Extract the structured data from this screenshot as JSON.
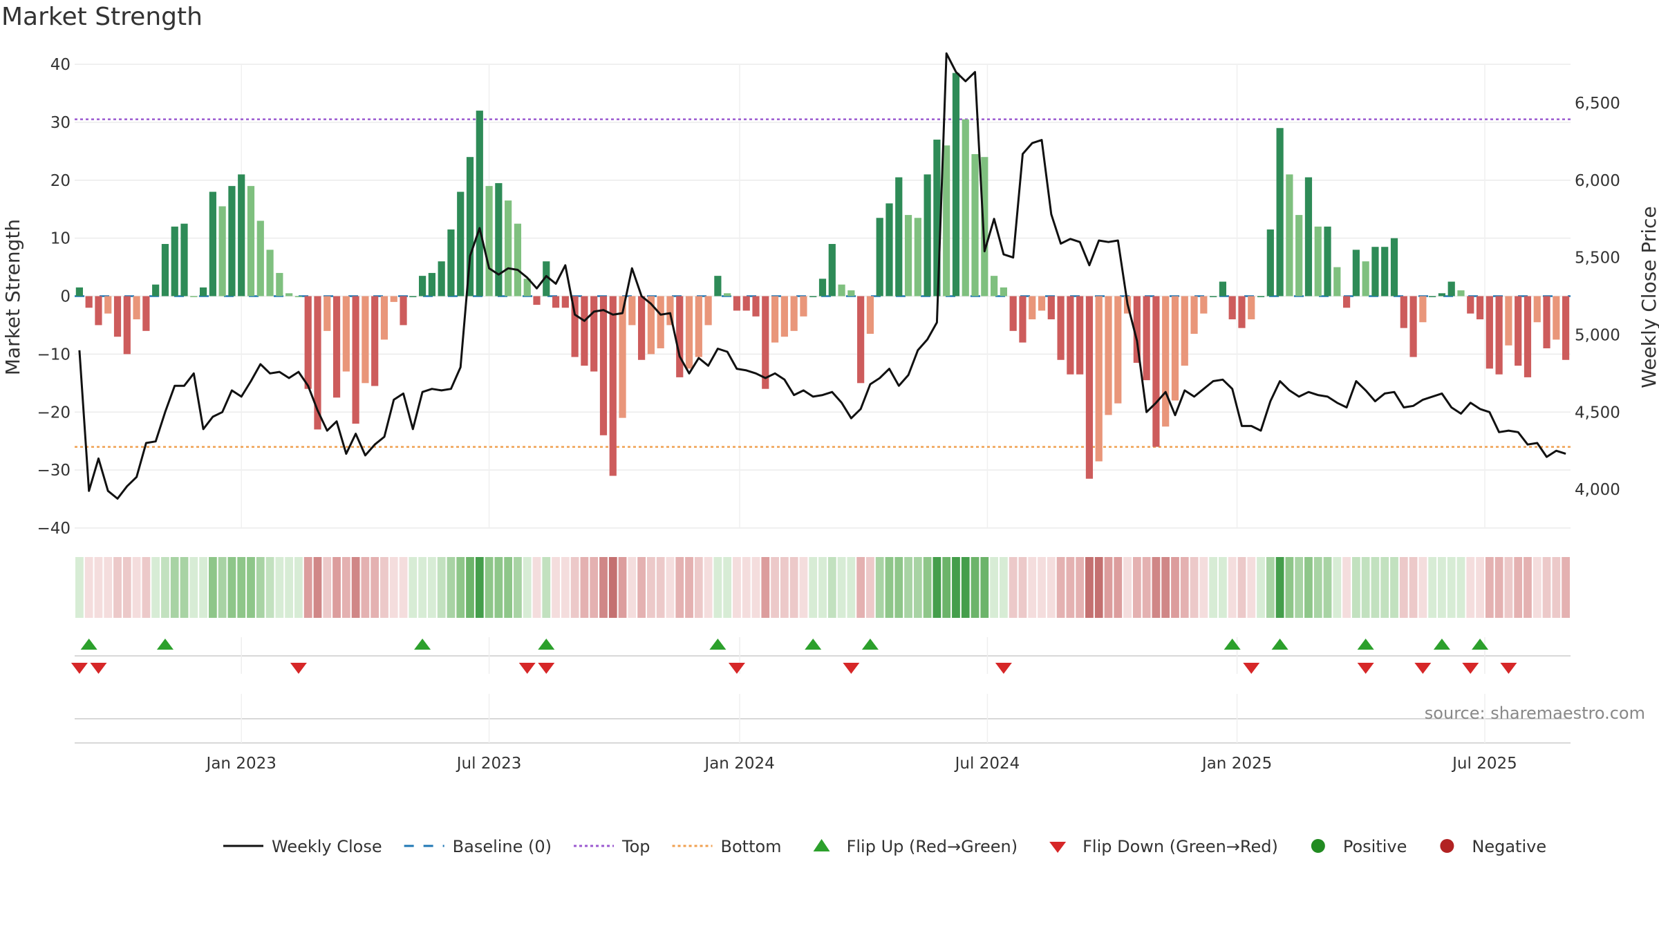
{
  "chart_data": {
    "type": "bar",
    "title": "Market Strength",
    "ylabel_left": "Market Strength",
    "ylabel_right": "Weekly Close Price",
    "ylim_left": [
      -40,
      40
    ],
    "yticks_left": [
      40,
      30,
      20,
      10,
      0,
      -10,
      -20,
      -30,
      -40
    ],
    "ytick_labels_left": [
      "40",
      "30",
      "20",
      "10",
      "0",
      "−10",
      "−20",
      "−30",
      "−40"
    ],
    "ylim_right": [
      3750,
      6750
    ],
    "yticks_right": [
      4000,
      4500,
      5000,
      5500,
      6000,
      6500
    ],
    "ytick_labels_right": [
      "4,000",
      "4,500",
      "5,000",
      "5,500",
      "6,000",
      "6,500"
    ],
    "x_range": [
      "2022-08-29",
      "2025-09-08"
    ],
    "x_ticks": [
      {
        "label": "Jan 2023",
        "week": 17.5
      },
      {
        "label": "Jul 2023",
        "week": 43.5
      },
      {
        "label": "Jan 2024",
        "week": 69.8
      },
      {
        "label": "Jul 2024",
        "week": 95.8
      },
      {
        "label": "Jan 2025",
        "week": 122
      },
      {
        "label": "Jul 2025",
        "week": 148
      }
    ],
    "top_line": 30.5,
    "bottom_line": -26,
    "strength": [
      1.5,
      -2,
      -5,
      -3,
      -7,
      -10,
      -4,
      -6,
      2,
      9,
      12,
      12.5,
      0,
      1.5,
      18,
      15.5,
      19,
      21,
      19,
      13,
      8,
      4,
      0.5,
      0,
      -16,
      -23,
      -6,
      -17.5,
      -13,
      -22,
      -15,
      -15.5,
      -7.5,
      -1,
      -5,
      0,
      3.5,
      4,
      6,
      11.5,
      18,
      24,
      32,
      19,
      19.5,
      16.5,
      12.5,
      3,
      -1.5,
      6,
      -2,
      -2,
      -10.5,
      -12,
      -13,
      -24,
      -31,
      -21,
      -5,
      -11,
      -10,
      -9,
      -5,
      -14,
      -12.5,
      -10.5,
      -5,
      3.5,
      0.5,
      -2.5,
      -2.5,
      -3.5,
      -16,
      -8,
      -7,
      -6,
      -3.5,
      0,
      3,
      9,
      2,
      1,
      -15,
      -6.5,
      13.5,
      16,
      20.5,
      14,
      13.5,
      21,
      27,
      26,
      38.5,
      30.5,
      24.5,
      24,
      3.5,
      1.5,
      -6,
      -8,
      -4,
      -2.5,
      -4,
      -11,
      -13.5,
      -13.5,
      -31.5,
      -28.5,
      -20.5,
      -18.5,
      -3,
      -11.5,
      -14.5,
      -26,
      -22.5,
      -18,
      -12,
      -6.5,
      -3,
      0,
      2.5,
      -4,
      -5.5,
      -4,
      0,
      11.5,
      29,
      21,
      14,
      20.5,
      12,
      12,
      5,
      -2,
      8,
      6,
      8.5,
      8.5,
      10,
      -5.5,
      -10.5,
      -4.5,
      0,
      0.5,
      2.5,
      1,
      -3,
      -4,
      -12.5,
      -13.5,
      -8.5,
      -12,
      -14,
      -4.5,
      -9,
      -7.5,
      -11
    ],
    "weekly_close": [
      4900,
      3990,
      4200,
      3990,
      3940,
      4020,
      4080,
      4300,
      4310,
      4500,
      4670,
      4670,
      4750,
      4390,
      4470,
      4500,
      4640,
      4600,
      4700,
      4810,
      4750,
      4760,
      4720,
      4760,
      4670,
      4510,
      4380,
      4440,
      4230,
      4360,
      4220,
      4290,
      4340,
      4580,
      4620,
      4390,
      4630,
      4650,
      4640,
      4650,
      4790,
      5510,
      5690,
      5430,
      5390,
      5430,
      5420,
      5370,
      5300,
      5380,
      5330,
      5450,
      5130,
      5090,
      5150,
      5160,
      5130,
      5140,
      5430,
      5250,
      5200,
      5130,
      5140,
      4860,
      4750,
      4850,
      4800,
      4910,
      4890,
      4780,
      4770,
      4750,
      4720,
      4750,
      4710,
      4610,
      4640,
      4600,
      4610,
      4630,
      4560,
      4460,
      4520,
      4680,
      4720,
      4780,
      4670,
      4740,
      4900,
      4970,
      5080,
      6820,
      6700,
      6640,
      6700,
      5540,
      5750,
      5520,
      5500,
      6170,
      6240,
      6260,
      5780,
      5590,
      5620,
      5600,
      5450,
      5610,
      5600,
      5610,
      5200,
      4960,
      4500,
      4560,
      4630,
      4480,
      4640,
      4600,
      4650,
      4700,
      4710,
      4650,
      4410,
      4410,
      4380,
      4570,
      4700,
      4640,
      4600,
      4630,
      4610,
      4600,
      4560,
      4530,
      4700,
      4640,
      4570,
      4620,
      4630,
      4530,
      4540,
      4580,
      4600,
      4620,
      4530,
      4490,
      4560,
      4520,
      4500,
      4370,
      4380,
      4370,
      4290,
      4300,
      4210,
      4250,
      4230
    ],
    "strength_band": {
      "positive_shades": [
        "#d7ecd5",
        "#c2e1bf",
        "#a8d3a4",
        "#8ec689",
        "#6cb46a",
        "#449e4b"
      ],
      "negative_shades": [
        "#f4dddd",
        "#ecc9c9",
        "#e4b1b1",
        "#dc9d9d",
        "#d08787",
        "#c47070"
      ]
    },
    "flip_up_weeks": [
      1,
      9,
      36,
      49,
      67,
      77,
      83,
      121,
      126,
      135,
      143,
      147
    ],
    "flip_down_weeks": [
      0,
      2,
      23,
      47,
      49,
      69,
      81,
      97,
      123,
      135,
      141,
      146,
      150
    ],
    "series": [
      {
        "name": "Weekly Close",
        "color": "#111111"
      },
      {
        "name": "Baseline (0)",
        "color": "#1f77b4"
      },
      {
        "name": "Top",
        "color": "#9b59d0"
      },
      {
        "name": "Bottom",
        "color": "#f0a050"
      }
    ],
    "colors": {
      "strong_up": "#2e8b57",
      "weak_up": "#7fc07f",
      "strong_down": "#cd5c5c",
      "weak_down": "#e9967a",
      "flip_up": "#2ca02c",
      "flip_down": "#d62728",
      "positive": "#228b22",
      "negative": "#b22222"
    },
    "legend": [
      "Weekly Close",
      "Baseline (0)",
      "Top",
      "Bottom",
      "Flip Up (Red→Green)",
      "Flip Down (Green→Red)",
      "Positive",
      "Negative"
    ],
    "source": "source: sharemaestro.com"
  }
}
